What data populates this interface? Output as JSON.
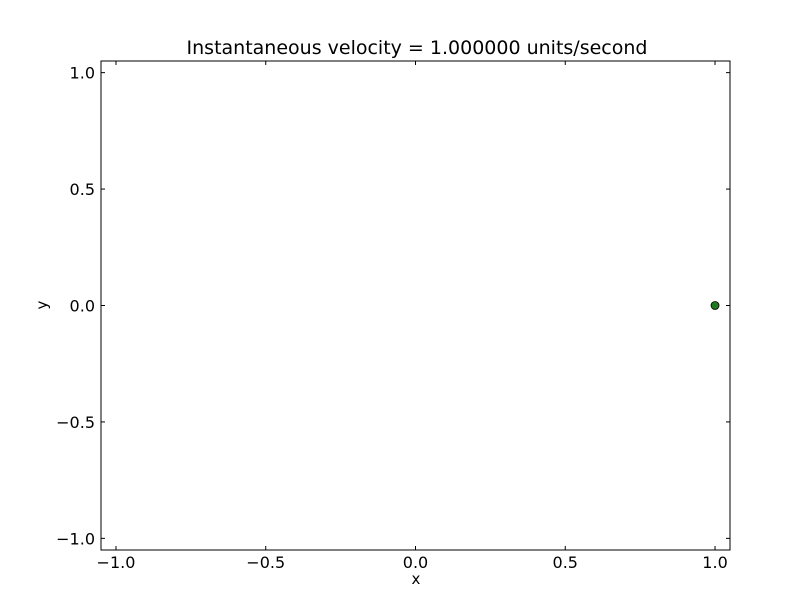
{
  "chart_data": {
    "type": "scatter",
    "title": "Instantaneous velocity = 1.000000 units/second",
    "xlabel": "x",
    "ylabel": "y",
    "xlim": [
      -1.05,
      1.05
    ],
    "ylim": [
      -1.05,
      1.05
    ],
    "x_ticks": [
      -1.0,
      -0.5,
      0.0,
      0.5,
      1.0
    ],
    "x_tick_labels": [
      "−1.0",
      "−0.5",
      "0.0",
      "0.5",
      "1.0"
    ],
    "y_ticks": [
      1.0,
      0.5,
      0.0,
      -0.5,
      -1.0
    ],
    "y_tick_labels": [
      "1.0",
      "0.5",
      "0.0",
      "−0.5",
      "−1.0"
    ],
    "grid": false,
    "series": [
      {
        "points": [
          {
            "x": 1.0,
            "y": 0.0
          }
        ],
        "color": "#1f7a1f"
      }
    ]
  }
}
